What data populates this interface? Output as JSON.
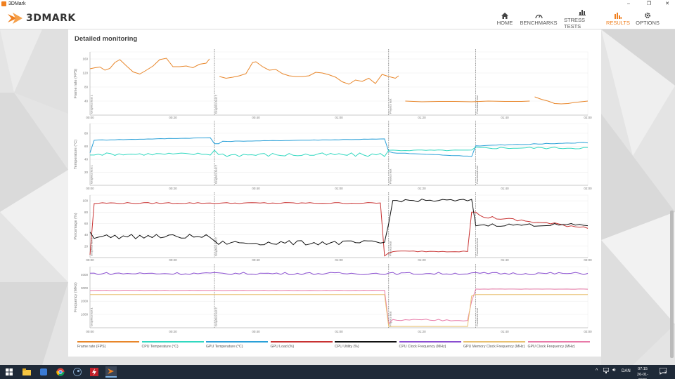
{
  "window": {
    "title": "3DMark"
  },
  "brand": {
    "logo_text": "3DMARK"
  },
  "nav": [
    {
      "key": "home",
      "label": "HOME",
      "icon": "home-icon"
    },
    {
      "key": "benchmarks",
      "label": "BENCHMARKS",
      "icon": "gauge-icon"
    },
    {
      "key": "stress",
      "label": "STRESS TESTS",
      "icon": "bar-chart-icon"
    },
    {
      "key": "results",
      "label": "RESULTS",
      "icon": "results-chart-icon",
      "active": true
    },
    {
      "key": "options",
      "label": "OPTIONS",
      "icon": "gear-icon"
    }
  ],
  "colors": {
    "accent": "#f08020",
    "panel_bg": "#ffffff",
    "taskbar": "#1f2a38"
  },
  "panel": {
    "title": "Detailed monitoring"
  },
  "time_ticks": [
    "00:00",
    "00:20",
    "00:40",
    "01:00",
    "01:20",
    "01:40",
    "02:00"
  ],
  "test_markers": [
    "Graphics test 1",
    "Graphics test 2",
    "Physics test",
    "Combined test"
  ],
  "chart_data": [
    {
      "type": "line",
      "ylabel": "Frame rate (FPS)",
      "ylim": [
        0,
        180
      ],
      "y_ticks": [
        "40",
        "80",
        "120",
        "160"
      ],
      "x": [
        0,
        5,
        10,
        15,
        20,
        25,
        30,
        35,
        40,
        45,
        50,
        55,
        60,
        65,
        70,
        75,
        80,
        85,
        90,
        95,
        100,
        105,
        110,
        115,
        120,
        125,
        130,
        135,
        140,
        145,
        150,
        155,
        160,
        165,
        170,
        175,
        180,
        185,
        190,
        195,
        200,
        205,
        210,
        215,
        220,
        225,
        230,
        235,
        240,
        245,
        250,
        255,
        260,
        265,
        270,
        275,
        280,
        285,
        290,
        295,
        300
      ],
      "series": [
        {
          "color": "#e8862a",
          "values": [
            null,
            null,
            null,
            null,
            null,
            null,
            null,
            null,
            null,
            null,
            null,
            null,
            null,
            null,
            null,
            null,
            null,
            null,
            null,
            null,
            null,
            null,
            null,
            null,
            null,
            null,
            null,
            null,
            null,
            null,
            null,
            null,
            null,
            null,
            null,
            null,
            null,
            null,
            null,
            null,
            null,
            null,
            null,
            null,
            null,
            null,
            null,
            null,
            null,
            null,
            null,
            null,
            null,
            null,
            null,
            null,
            null,
            null,
            null,
            null,
            null
          ]
        }
      ],
      "segments": [
        {
          "x": [
            0,
            3,
            6,
            9,
            12,
            15,
            18,
            22,
            26,
            30,
            34,
            38,
            42,
            46,
            50,
            54,
            58,
            62,
            66,
            70,
            72
          ],
          "y": [
            132,
            135,
            137,
            128,
            133,
            150,
            158,
            140,
            123,
            117,
            128,
            140,
            158,
            162,
            138,
            138,
            140,
            135,
            145,
            148,
            160
          ]
        },
        {
          "x": [
            78,
            82,
            86,
            90,
            94,
            98,
            100,
            104,
            108,
            112,
            116,
            120,
            124,
            128,
            132,
            136,
            140,
            144,
            148,
            152,
            156,
            160,
            164,
            168,
            172,
            176,
            180,
            184,
            186
          ],
          "y": [
            110,
            105,
            108,
            112,
            118,
            150,
            152,
            138,
            128,
            130,
            118,
            112,
            110,
            110,
            112,
            122,
            120,
            115,
            108,
            95,
            88,
            100,
            96,
            105,
            90,
            116,
            110,
            105,
            112
          ]
        },
        {
          "x": [
            190,
            200,
            210,
            220,
            230,
            240,
            250,
            260,
            265
          ],
          "y": [
            40,
            38,
            39,
            39,
            38,
            40,
            39,
            39,
            40
          ]
        },
        {
          "x": [
            268,
            272,
            276,
            280,
            284,
            288,
            292,
            296,
            300
          ],
          "y": [
            52,
            45,
            40,
            33,
            32,
            33,
            36,
            38,
            40
          ]
        }
      ]
    },
    {
      "type": "line",
      "ylabel": "Temperature (°C)",
      "ylim": [
        0,
        95
      ],
      "y_ticks": [
        "20",
        "40",
        "60",
        "80"
      ],
      "series": [
        {
          "name": "GPU Temperature (°C)",
          "color": "#2aa0d8"
        },
        {
          "name": "CPU Temperature (°C)",
          "color": "#32d8c0"
        }
      ]
    },
    {
      "type": "line",
      "ylabel": "Percentage (%)",
      "ylim": [
        0,
        110
      ],
      "y_ticks": [
        "20",
        "40",
        "60",
        "80",
        "100"
      ],
      "series": [
        {
          "name": "GPU Load (%)",
          "color": "#c83232"
        },
        {
          "name": "CPU Utility (%)",
          "color": "#111111"
        }
      ]
    },
    {
      "type": "line",
      "ylabel": "Frequency (MHz)",
      "ylim": [
        0,
        4600
      ],
      "y_ticks": [
        "1000",
        "2000",
        "3000",
        "4000"
      ],
      "series": [
        {
          "name": "CPU Clock Frequency (MHz)",
          "color": "#8a4ed0"
        },
        {
          "name": "GPU Clock Frequency (MHz)",
          "color": "#e87aa8"
        },
        {
          "name": "GPU Memory Clock Frequency (MHz)",
          "color": "#e8c070"
        }
      ]
    }
  ],
  "legend": [
    {
      "label": "Frame rate (FPS)",
      "color": "#e8862a"
    },
    {
      "label": "CPU Temperature (°C)",
      "color": "#32d8c0"
    },
    {
      "label": "GPU Temperature (°C)",
      "color": "#2aa0d8"
    },
    {
      "label": "GPU Load (%)",
      "color": "#c83232"
    },
    {
      "label": "CPU Utility (%)",
      "color": "#111111"
    },
    {
      "label": "CPU Clock Frequency (MHz)",
      "color": "#8a4ed0"
    },
    {
      "label": "GPU Memory Clock Frequency (MHz)",
      "color": "#e8c070"
    },
    {
      "label": "GPU Clock Frequency (MHz)",
      "color": "#e87aa8"
    }
  ],
  "taskbar": {
    "time": "07:15",
    "date": "26-01-2026",
    "lang": "DAN",
    "notif_count": "2"
  }
}
